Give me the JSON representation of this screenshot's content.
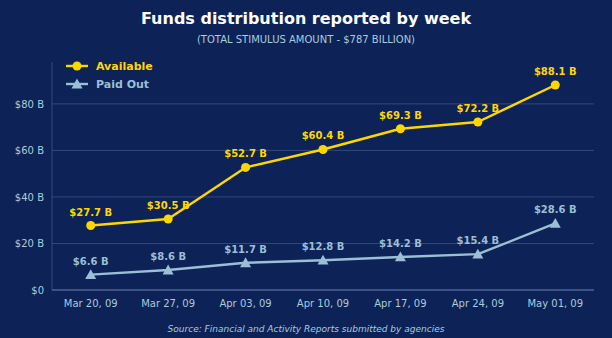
{
  "chart_data": {
    "type": "line",
    "title": "Funds distribution reported by week",
    "subtitle": "(TOTAL STIMULUS AMOUNT - $787 BILLION)",
    "annotations": [
      "Source: Financial and Activity Reports submitted by agencies"
    ],
    "categories": [
      "Mar 20, 09",
      "Mar 27, 09",
      "Apr 03, 09",
      "Apr 10, 09",
      "Apr 17, 09",
      "Apr 24, 09",
      "May 01, 09"
    ],
    "series": [
      {
        "name": "Available",
        "color": "#FFD700",
        "marker": "circle",
        "values": [
          27.7,
          30.5,
          52.7,
          60.4,
          69.3,
          72.2,
          88.1
        ],
        "value_labels": [
          "$27.7 B",
          "$30.5 B",
          "$52.7 B",
          "$60.4 B",
          "$69.3 B",
          "$72.2 B",
          "$88.1 B"
        ]
      },
      {
        "name": "Paid Out",
        "color": "#9BBFD4",
        "marker": "triangle",
        "values": [
          6.6,
          8.6,
          11.7,
          12.8,
          14.2,
          15.4,
          28.6
        ],
        "value_labels": [
          "$6.6 B",
          "$8.6 B",
          "$11.7 B",
          "$12.8 B",
          "$14.2 B",
          "$15.4 B",
          "$28.6 B"
        ]
      }
    ],
    "ylim": [
      0,
      98
    ],
    "yticks": [
      {
        "value": 0,
        "label": "$0"
      },
      {
        "value": 20,
        "label": "$20 B"
      },
      {
        "value": 40,
        "label": "$40 B"
      },
      {
        "value": 60,
        "label": "$60 B"
      },
      {
        "value": 80,
        "label": "$80 B"
      }
    ],
    "grid": true,
    "legend": "upper left",
    "data_labels": true
  }
}
